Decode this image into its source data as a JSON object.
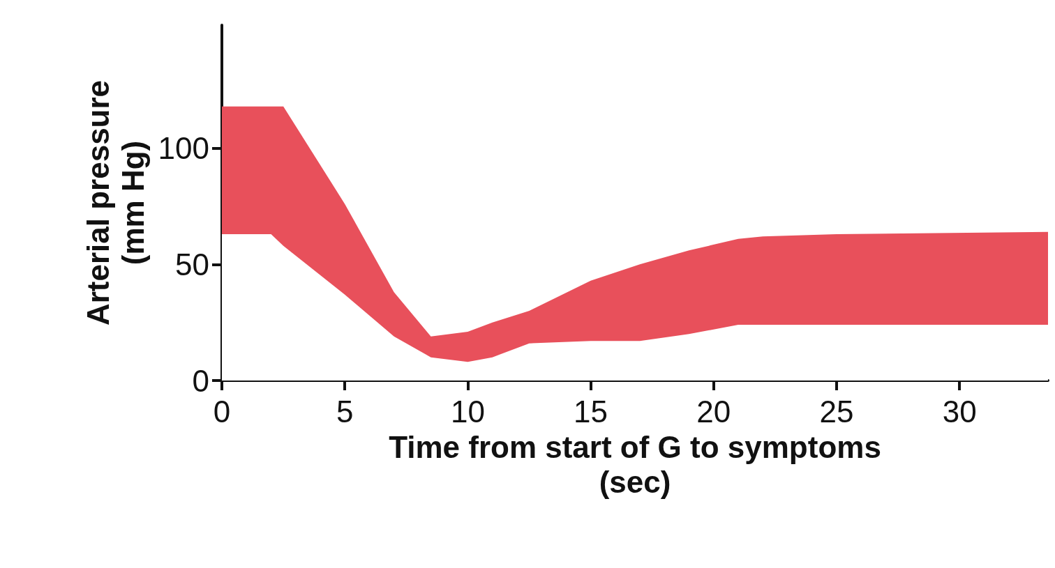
{
  "chart_data": {
    "type": "area",
    "stacked": true,
    "xlabel": "Time from start of G to symptoms\n(sec)",
    "ylabel": "Arterial pressure\n(mm Hg)",
    "x": [
      0,
      2,
      2.5,
      5,
      7,
      8.5,
      10,
      11,
      12.5,
      15,
      17,
      19,
      21,
      22,
      25,
      33.6
    ],
    "series": [
      {
        "color": "#ffffff",
        "values": [
          63,
          63,
          58,
          37,
          19,
          10,
          8,
          10,
          16,
          17,
          17,
          20,
          24,
          24,
          24,
          24
        ]
      },
      {
        "color": "#e8505b",
        "values": [
          55,
          55,
          60,
          39,
          19,
          9,
          13,
          15,
          14,
          26,
          33,
          36,
          37,
          38,
          39,
          40
        ]
      }
    ],
    "xlim": [
      0,
      33.6
    ],
    "xticks": [
      0,
      5,
      10,
      15,
      20,
      25,
      30
    ],
    "ylim": [
      0,
      153
    ],
    "yticks": [
      0,
      50,
      100
    ],
    "grid": false
  }
}
